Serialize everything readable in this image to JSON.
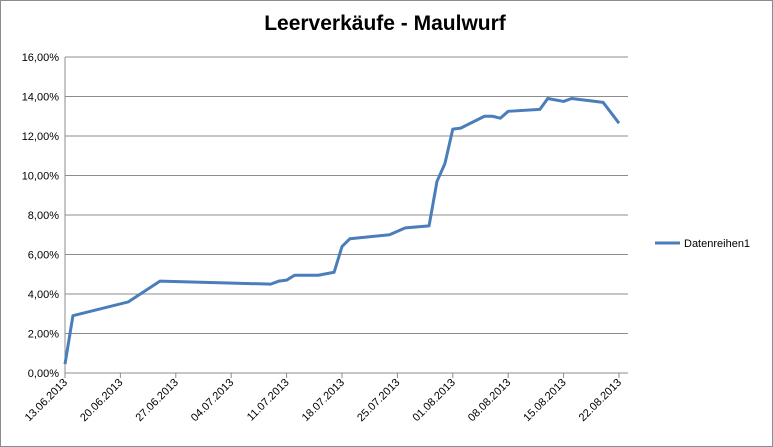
{
  "chart_data": {
    "type": "line",
    "title": "Leerverkäufe - Maulwurf",
    "x": [
      "13.06.2013",
      "14.06.2013",
      "21.06.2013",
      "25.06.2013",
      "09.07.2013",
      "10.07.2013",
      "11.07.2013",
      "12.07.2013",
      "15.07.2013",
      "17.07.2013",
      "18.07.2013",
      "19.07.2013",
      "24.07.2013",
      "26.07.2013",
      "29.07.2013",
      "30.07.2013",
      "31.07.2013",
      "01.08.2013",
      "02.08.2013",
      "05.08.2013",
      "06.08.2013",
      "07.08.2013",
      "08.08.2013",
      "12.08.2013",
      "13.08.2013",
      "15.08.2013",
      "16.08.2013",
      "20.08.2013",
      "22.08.2013"
    ],
    "series": [
      {
        "name": "Datenreihen1",
        "color": "#4a7ebb",
        "values": [
          0.45,
          2.9,
          3.6,
          4.65,
          4.5,
          4.65,
          4.7,
          4.95,
          4.95,
          5.1,
          6.4,
          6.8,
          7.0,
          7.35,
          7.45,
          9.7,
          10.6,
          12.35,
          12.4,
          13.0,
          13.0,
          12.9,
          13.25,
          13.35,
          13.9,
          13.75,
          13.9,
          13.7,
          12.65
        ]
      }
    ],
    "xlim": [
      "13.06.2013",
      "22.08.2013"
    ],
    "xticks": [
      "13.06.2013",
      "20.06.2013",
      "27.06.2013",
      "04.07.2013",
      "11.07.2013",
      "18.07.2013",
      "25.07.2013",
      "01.08.2013",
      "08.08.2013",
      "15.08.2013",
      "22.08.2013"
    ],
    "ylim": [
      0,
      16
    ],
    "yticks": [
      {
        "value": 0,
        "label": "0,00%"
      },
      {
        "value": 2,
        "label": "2,00%"
      },
      {
        "value": 4,
        "label": "4,00%"
      },
      {
        "value": 6,
        "label": "6,00%"
      },
      {
        "value": 8,
        "label": "8,00%"
      },
      {
        "value": 10,
        "label": "10,00%"
      },
      {
        "value": 12,
        "label": "12,00%"
      },
      {
        "value": 14,
        "label": "14,00%"
      },
      {
        "value": 16,
        "label": "16,00%"
      }
    ],
    "grid": true,
    "legend": "right"
  }
}
